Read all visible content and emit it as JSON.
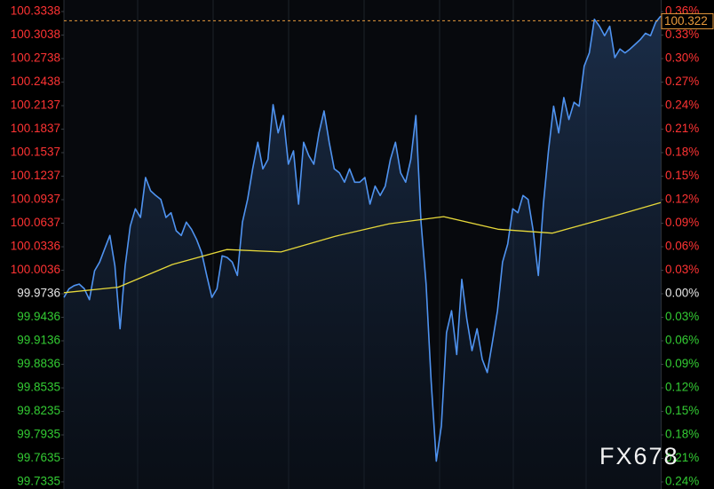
{
  "chart_data": {
    "type": "line",
    "ylim": [
      99.7335,
      100.3338
    ],
    "yticks": [
      100.3338,
      100.3038,
      100.2738,
      100.2438,
      100.2137,
      100.1837,
      100.1537,
      100.1237,
      100.0937,
      100.0637,
      100.0336,
      100.0036,
      99.9736,
      99.9436,
      99.9136,
      99.8836,
      99.8535,
      99.8235,
      99.7935,
      99.7635,
      99.7335
    ],
    "y2lim": [
      -0.24,
      0.36
    ],
    "y2ticks": [
      {
        "value": 0.36,
        "label": "0.36%"
      },
      {
        "value": 0.33,
        "label": "0.33%"
      },
      {
        "value": 0.3,
        "label": "0.30%"
      },
      {
        "value": 0.27,
        "label": "0.27%"
      },
      {
        "value": 0.24,
        "label": "0.24%"
      },
      {
        "value": 0.21,
        "label": "0.21%"
      },
      {
        "value": 0.18,
        "label": "0.18%"
      },
      {
        "value": 0.15,
        "label": "0.15%"
      },
      {
        "value": 0.12,
        "label": "0.12%"
      },
      {
        "value": 0.09,
        "label": "0.09%"
      },
      {
        "value": 0.06,
        "label": "0.06%"
      },
      {
        "value": 0.03,
        "label": "0.03%"
      },
      {
        "value": 0,
        "label": "0.00%"
      },
      {
        "value": -0.03,
        "label": "0.03%"
      },
      {
        "value": -0.06,
        "label": "0.06%"
      },
      {
        "value": -0.09,
        "label": "0.09%"
      },
      {
        "value": -0.12,
        "label": "0.12%"
      },
      {
        "value": -0.15,
        "label": "0.15%"
      },
      {
        "value": -0.18,
        "label": "0.18%"
      },
      {
        "value": -0.21,
        "label": "0.21%"
      },
      {
        "value": -0.24,
        "label": "0.24%"
      }
    ],
    "up_color": "#ff3333",
    "down_color": "#33cc33",
    "neutral_color": "#e6e6e6",
    "last_price": 100.322,
    "last_price_color": "#e89a3c",
    "watermark": "FX678",
    "series": [
      {
        "color": "#4f93f0",
        "values": [
          99.969,
          99.98,
          99.984,
          99.986,
          99.98,
          99.966,
          100.003,
          100.014,
          100.031,
          100.048,
          100.009,
          99.929,
          100.009,
          100.06,
          100.082,
          100.071,
          100.122,
          100.105,
          100.099,
          100.094,
          100.071,
          100.077,
          100.054,
          100.048,
          100.065,
          100.056,
          100.043,
          100.026,
          99.997,
          99.969,
          99.98,
          100.022,
          100.02,
          100.014,
          99.997,
          100.065,
          100.094,
          100.133,
          100.167,
          100.133,
          100.145,
          100.215,
          100.179,
          100.201,
          100.139,
          100.156,
          100.088,
          100.167,
          100.15,
          100.139,
          100.179,
          100.207,
          100.167,
          100.133,
          100.128,
          100.116,
          100.133,
          100.116,
          100.116,
          100.122,
          100.088,
          100.111,
          100.099,
          100.111,
          100.145,
          100.167,
          100.128,
          100.116,
          100.145,
          100.201,
          100.065,
          99.986,
          99.862,
          99.76,
          99.805,
          99.924,
          99.952,
          99.896,
          99.992,
          99.941,
          99.901,
          99.929,
          99.89,
          99.873,
          99.912,
          99.952,
          100.014,
          100.037,
          100.082,
          100.077,
          100.099,
          100.094,
          100.054,
          99.997,
          100.088,
          100.156,
          100.213,
          100.179,
          100.224,
          100.196,
          100.218,
          100.213,
          100.264,
          100.281,
          100.324,
          100.315,
          100.303,
          100.315,
          100.275,
          100.286,
          100.281,
          100.286,
          100.292,
          100.298,
          100.306,
          100.303,
          100.32,
          100.328
        ]
      },
      {
        "color": "#e6d83a",
        "values": [
          99.975,
          99.982,
          100.011,
          100.03,
          100.027,
          100.047,
          100.063,
          100.072,
          100.056,
          100.051,
          100.07,
          100.09
        ]
      }
    ]
  }
}
